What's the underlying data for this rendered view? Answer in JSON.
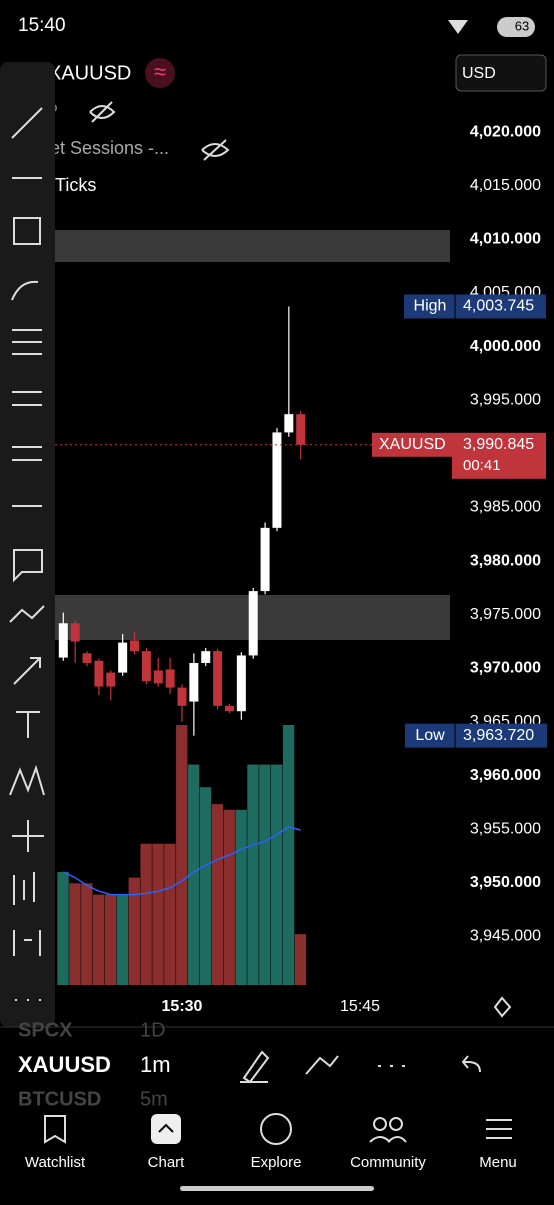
{
  "status_bar": {
    "time": "15:40",
    "battery": "63"
  },
  "header": {
    "symbol": "XAUUSD",
    "currency": "USD"
  },
  "legend": {
    "rows": [
      "P",
      "et Sessions -...",
      "Ticks"
    ]
  },
  "chart_data": {
    "type": "candlestick",
    "open": [
      3971.0,
      3974.2,
      3971.4,
      3970.7,
      3969.6,
      3969.6,
      3972.6,
      3971.6,
      3969.8,
      3969.9,
      3968.2,
      3966.9,
      3970.5,
      3971.6,
      3966.5,
      3966.0,
      3971.2,
      3977.2,
      3983.1,
      3992.0,
      3993.7
    ],
    "high": [
      3975.2,
      3974.5,
      3971.6,
      3970.9,
      3969.8,
      3973.2,
      3973.4,
      3971.9,
      3971.0,
      3971.0,
      3968.5,
      3971.4,
      3971.9,
      3971.8,
      3966.7,
      3971.5,
      3977.5,
      3983.6,
      3992.4,
      4003.745,
      3994.0
    ],
    "low": [
      3970.7,
      3970.5,
      3970.2,
      3967.5,
      3967.0,
      3969.3,
      3971.3,
      3968.5,
      3968.3,
      3967.6,
      3965.0,
      3963.72,
      3970.2,
      3966.2,
      3965.8,
      3965.2,
      3970.9,
      3976.9,
      3982.8,
      3991.6,
      3989.5
    ],
    "close": [
      3974.2,
      3972.5,
      3970.5,
      3968.3,
      3968.3,
      3972.4,
      3971.6,
      3968.8,
      3968.6,
      3968.2,
      3966.5,
      3970.5,
      3971.6,
      3966.5,
      3966.0,
      3971.2,
      3977.2,
      3983.1,
      3992.0,
      3993.7,
      3990.845
    ],
    "volume": [
      100,
      90,
      90,
      80,
      80,
      80,
      95,
      125,
      125,
      125,
      230,
      195,
      175,
      160,
      155,
      155,
      195,
      195,
      195,
      230,
      45
    ],
    "volume_ma": [
      100,
      95,
      88,
      83,
      80,
      80,
      80,
      81,
      83,
      86,
      92,
      100,
      106,
      111,
      115,
      120,
      124,
      127,
      133,
      140,
      137
    ],
    "up_color": "#ffffff",
    "down_color": "#c0343c",
    "volume_up_color": "#1e6b60",
    "volume_down_color": "#8a2e2e",
    "ma_color": "#2962ff",
    "ylim": [
      3940,
      4023
    ],
    "yticks": [
      {
        "value": 4020,
        "label": "4,020.000"
      },
      {
        "value": 4015,
        "label": "4,015.000"
      },
      {
        "value": 4010,
        "label": "4,010.000"
      },
      {
        "value": 4005,
        "label": "4,005.000"
      },
      {
        "value": 4000,
        "label": "4,000.000"
      },
      {
        "value": 3995,
        "label": "3,995.000"
      },
      {
        "value": 3985,
        "label": "3,985.000"
      },
      {
        "value": 3980,
        "label": "3,980.000"
      },
      {
        "value": 3975,
        "label": "3,975.000"
      },
      {
        "value": 3970,
        "label": "3,970.000"
      },
      {
        "value": 3965,
        "label": "3,965.000"
      },
      {
        "value": 3960,
        "label": "3,960.000"
      },
      {
        "value": 3955,
        "label": "3,955.000"
      },
      {
        "value": 3950,
        "label": "3,950.000"
      },
      {
        "value": 3945,
        "label": "3,945.000"
      }
    ],
    "xticks": [
      {
        "value": 10,
        "label": "15:30"
      },
      {
        "value": 25,
        "label": "15:45"
      }
    ],
    "markers": [
      {
        "label": "High",
        "value": 4003.745,
        "value_label": "4,003.745",
        "color": "#1c3a78"
      },
      {
        "label": "XAUUSD",
        "value": 3990.845,
        "value_label": "3,990.845",
        "countdown": "00:41",
        "color": "#c0343c"
      },
      {
        "label": "Low",
        "value": 3963.72,
        "value_label": "3,963.720",
        "color": "#1c3a78"
      }
    ]
  },
  "symbols": [
    {
      "symbol": "SPCX",
      "interval": "1D"
    },
    {
      "symbol": "XAUUSD",
      "interval": "1m"
    },
    {
      "symbol": "BTCUSD",
      "interval": "5m"
    }
  ],
  "nav": [
    "Watchlist",
    "Chart",
    "Explore",
    "Community",
    "Menu"
  ]
}
